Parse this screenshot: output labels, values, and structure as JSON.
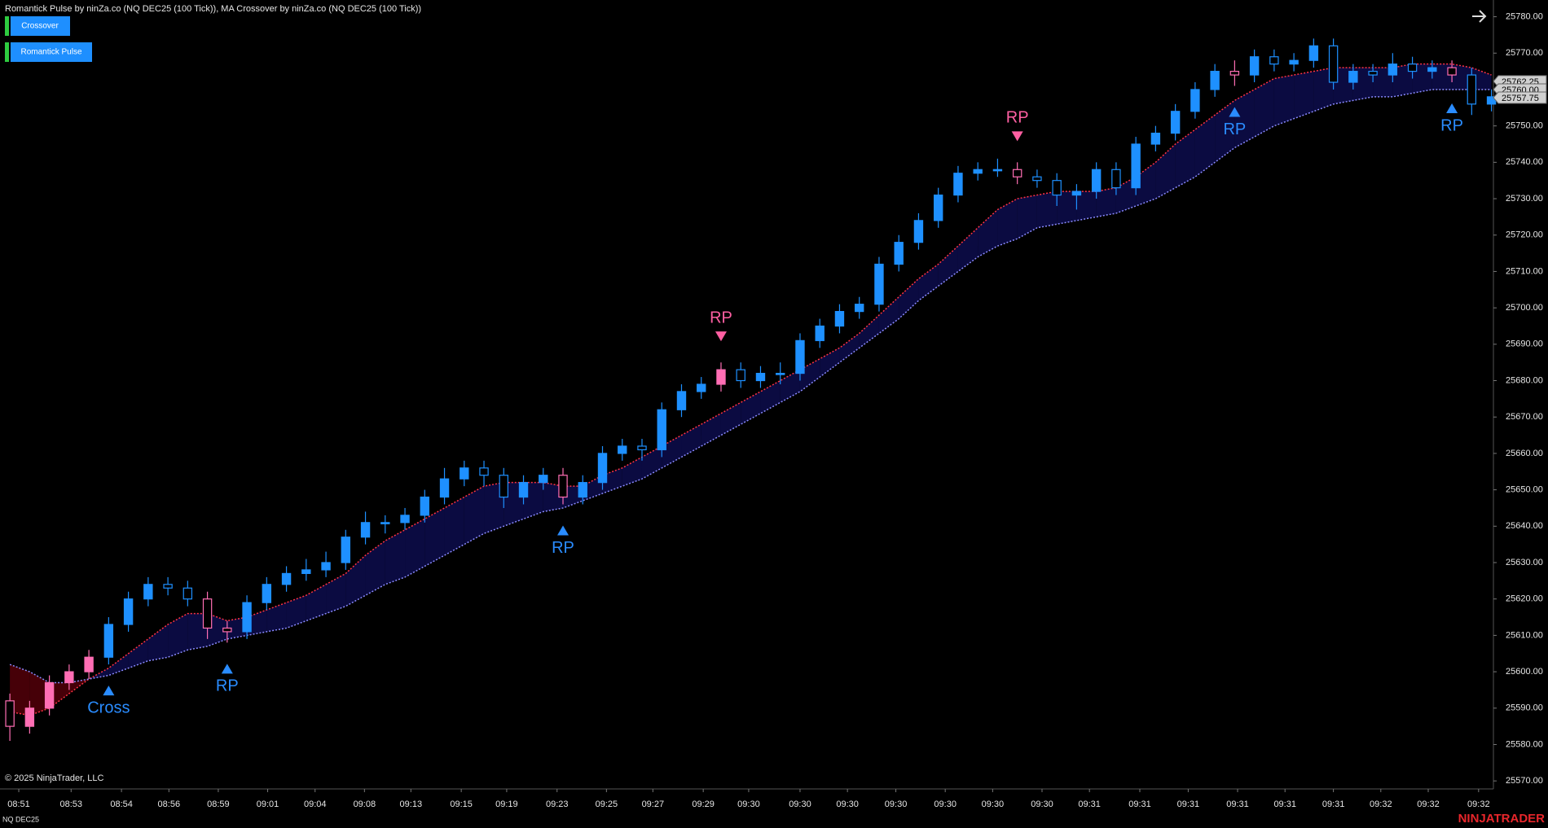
{
  "chart_data": {
    "type": "candlestick",
    "title": "Romantick Pulse by ninZa.co (NQ DEC25 (100 Tick)), MA Crossover by ninZa.co (NQ DEC25 (100 Tick))",
    "buttons": [
      "Crossover",
      "Romantick Pulse"
    ],
    "copyright": "© 2025 NinjaTrader, LLC",
    "instrument": "NQ DEC25",
    "brand": "NINJATRADER",
    "bull_color": "#1e90ff",
    "highlight_color": "#ff6eb4",
    "highlighted": [
      0,
      1,
      2,
      3,
      4,
      10,
      11,
      28,
      36,
      51,
      62,
      73
    ],
    "x": [
      0,
      1,
      2,
      3,
      4,
      5,
      6,
      7,
      8,
      9,
      10,
      11,
      12,
      13,
      14,
      15,
      16,
      17,
      18,
      19,
      20,
      21,
      22,
      23,
      24,
      25,
      26,
      27,
      28,
      29,
      30,
      31,
      32,
      33,
      34,
      35,
      36,
      37,
      38,
      39,
      40,
      41,
      42,
      43,
      44,
      45,
      46,
      47,
      48,
      49,
      50,
      51,
      52,
      53,
      54,
      55,
      56,
      57,
      58,
      59,
      60,
      61,
      62,
      63,
      64,
      65,
      66,
      67,
      68,
      69,
      70,
      71,
      72,
      73,
      74,
      75
    ],
    "open": [
      25592,
      25585,
      25590,
      25597,
      25600,
      25604,
      25613,
      25620,
      25624,
      25623,
      25620,
      25612,
      25611,
      25619,
      25624,
      25627,
      25628,
      25630,
      25637,
      25641,
      25641,
      25643,
      25648,
      25653,
      25656,
      25654,
      25648,
      25652,
      25654,
      25648,
      25652,
      25660,
      25662,
      25661,
      25672,
      25677,
      25679,
      25683,
      25680,
      25682,
      25682,
      25691,
      25695,
      25699,
      25701,
      25712,
      25718,
      25724,
      25731,
      25737,
      25738,
      25738,
      25736,
      25735,
      25731,
      25732,
      25738,
      25733,
      25745,
      25748,
      25754,
      25760,
      25765,
      25764,
      25769,
      25767,
      25768,
      25772,
      25762,
      25765,
      25764,
      25767,
      25765,
      25766,
      25764,
      25756
    ],
    "high": [
      25594,
      25592,
      25599,
      25602,
      25606,
      25615,
      25622,
      25626,
      25626,
      25625,
      25622,
      25614,
      25621,
      25626,
      25629,
      25631,
      25633,
      25639,
      25644,
      25643,
      25645,
      25650,
      25656,
      25658,
      25658,
      25656,
      25654,
      25656,
      25656,
      25654,
      25662,
      25664,
      25664,
      25674,
      25679,
      25681,
      25685,
      25685,
      25684,
      25685,
      25693,
      25697,
      25701,
      25703,
      25714,
      25720,
      25726,
      25733,
      25739,
      25740,
      25741,
      25740,
      25738,
      25737,
      25734,
      25740,
      25740,
      25747,
      25750,
      25756,
      25762,
      25767,
      25768,
      25771,
      25771,
      25770,
      25774,
      25774,
      25767,
      25767,
      25770,
      25769,
      25768,
      25768,
      25766,
      25760
    ],
    "low": [
      25581,
      25583,
      25588,
      25595,
      25598,
      25602,
      25611,
      25618,
      25621,
      25618,
      25609,
      25608,
      25609,
      25617,
      25622,
      25625,
      25626,
      25628,
      25635,
      25638,
      25639,
      25641,
      25646,
      25651,
      25651,
      25645,
      25646,
      25650,
      25646,
      25646,
      25650,
      25658,
      25658,
      25659,
      25670,
      25675,
      25677,
      25678,
      25678,
      25679,
      25680,
      25689,
      25693,
      25697,
      25699,
      25710,
      25716,
      25722,
      25729,
      25735,
      25736,
      25734,
      25733,
      25728,
      25727,
      25730,
      25731,
      25731,
      25743,
      25746,
      25752,
      25758,
      25761,
      25762,
      25765,
      25765,
      25766,
      25760,
      25760,
      25762,
      25762,
      25763,
      25763,
      25762,
      25753,
      25754
    ],
    "close": [
      25585,
      25590,
      25597,
      25600,
      25604,
      25613,
      25620,
      25624,
      25623,
      25620,
      25612,
      25611,
      25619,
      25624,
      25627,
      25628,
      25630,
      25637,
      25641,
      25641,
      25643,
      25648,
      25653,
      25656,
      25654,
      25648,
      25652,
      25654,
      25648,
      25652,
      25660,
      25662,
      25661,
      25672,
      25677,
      25679,
      25683,
      25680,
      25682,
      25682,
      25691,
      25695,
      25699,
      25701,
      25712,
      25718,
      25724,
      25731,
      25737,
      25738,
      25738,
      25736,
      25735,
      25731,
      25732,
      25738,
      25733,
      25745,
      25748,
      25754,
      25760,
      25765,
      25764,
      25769,
      25767,
      25768,
      25772,
      25762,
      25765,
      25764,
      25767,
      25765,
      25766,
      25764,
      25756,
      25758
    ],
    "ma_fast": {
      "color": "#ff3344",
      "values": [
        25589,
        25588,
        25590,
        25594,
        25598,
        25601,
        25605,
        25609,
        25613,
        25616,
        25616,
        25614,
        25615,
        25617,
        25619,
        25621,
        25624,
        25627,
        25632,
        25636,
        25639,
        25642,
        25645,
        25648,
        25651,
        25652,
        25652,
        25652,
        25651,
        25651,
        25654,
        25656,
        25659,
        25662,
        25665,
        25668,
        25671,
        25674,
        25677,
        25680,
        25683,
        25686,
        25689,
        25693,
        25698,
        25703,
        25708,
        25712,
        25717,
        25722,
        25727,
        25730,
        25731,
        25732,
        25732,
        25732,
        25733,
        25736,
        25740,
        25745,
        25749,
        25753,
        25757,
        25760,
        25763,
        25764,
        25765,
        25766,
        25766,
        25766,
        25766,
        25767,
        25767,
        25767,
        25766,
        25764
      ]
    },
    "ma_slow": {
      "color": "#8a8aff",
      "values": [
        25602,
        25600,
        25597,
        25597,
        25598,
        25599,
        25601,
        25603,
        25604,
        25606,
        25607,
        25609,
        25610,
        25611,
        25612,
        25614,
        25616,
        25618,
        25621,
        25624,
        25626,
        25629,
        25632,
        25635,
        25638,
        25640,
        25642,
        25644,
        25645,
        25647,
        25649,
        25651,
        25653,
        25656,
        25659,
        25662,
        25665,
        25668,
        25671,
        25674,
        25677,
        25681,
        25685,
        25689,
        25693,
        25697,
        25702,
        25706,
        25710,
        25714,
        25717,
        25719,
        25722,
        25723,
        25724,
        25725,
        25726,
        25728,
        25730,
        25733,
        25736,
        25740,
        25744,
        25747,
        25750,
        25752,
        25754,
        25756,
        25757,
        25758,
        25758,
        25759,
        25760,
        25760,
        25760,
        25760
      ]
    },
    "band_up_color": "#0c0c45",
    "band_down_color": "#4a0008",
    "signals": [
      {
        "label": "Cross",
        "index": 5,
        "dir": "up"
      },
      {
        "label": "RP",
        "index": 11,
        "dir": "up"
      },
      {
        "label": "RP",
        "index": 28,
        "dir": "up"
      },
      {
        "label": "RP",
        "index": 36,
        "dir": "down"
      },
      {
        "label": "RP",
        "index": 51,
        "dir": "down"
      },
      {
        "label": "RP",
        "index": 62,
        "dir": "up"
      },
      {
        "label": "RP",
        "index": 73,
        "dir": "up"
      }
    ],
    "signal_up_color": "#2a8cff",
    "signal_down_color": "#ff5fa2",
    "price_badges": [
      {
        "value": 25762.25,
        "label": "25762.25"
      },
      {
        "value": 25760,
        "label": "25760.00"
      },
      {
        "value": 25757.75,
        "label": "25757.75"
      }
    ],
    "xlim": [
      -0.5,
      75.1
    ],
    "ylim": [
      25567.8,
      25784.6
    ],
    "yticks": [
      {
        "value": 25570,
        "label": "25570.00"
      },
      {
        "value": 25580,
        "label": "25580.00"
      },
      {
        "value": 25590,
        "label": "25590.00"
      },
      {
        "value": 25600,
        "label": "25600.00"
      },
      {
        "value": 25610,
        "label": "25610.00"
      },
      {
        "value": 25620,
        "label": "25620.00"
      },
      {
        "value": 25630,
        "label": "25630.00"
      },
      {
        "value": 25640,
        "label": "25640.00"
      },
      {
        "value": 25650,
        "label": "25650.00"
      },
      {
        "value": 25660,
        "label": "25660.00"
      },
      {
        "value": 25670,
        "label": "25670.00"
      },
      {
        "value": 25680,
        "label": "25680.00"
      },
      {
        "value": 25690,
        "label": "25690.00"
      },
      {
        "value": 25700,
        "label": "25700.00"
      },
      {
        "value": 25710,
        "label": "25710.00"
      },
      {
        "value": 25720,
        "label": "25720.00"
      },
      {
        "value": 25730,
        "label": "25730.00"
      },
      {
        "value": 25740,
        "label": "25740.00"
      },
      {
        "value": 25750,
        "label": "25750.00"
      },
      {
        "value": 25760,
        "label": "25760.00"
      },
      {
        "value": 25770,
        "label": "25770.00"
      },
      {
        "value": 25780,
        "label": "25780.00"
      }
    ],
    "xticks": [
      {
        "value": 0.45,
        "label": "08:51"
      },
      {
        "value": 3.1,
        "label": "08:53"
      },
      {
        "value": 5.65,
        "label": "08:54"
      },
      {
        "value": 8.05,
        "label": "08:56"
      },
      {
        "value": 10.55,
        "label": "08:59"
      },
      {
        "value": 13.05,
        "label": "09:01"
      },
      {
        "value": 15.45,
        "label": "09:04"
      },
      {
        "value": 17.95,
        "label": "09:08"
      },
      {
        "value": 20.3,
        "label": "09:13"
      },
      {
        "value": 22.85,
        "label": "09:15"
      },
      {
        "value": 25.15,
        "label": "09:19"
      },
      {
        "value": 27.7,
        "label": "09:23"
      },
      {
        "value": 30.2,
        "label": "09:25"
      },
      {
        "value": 32.55,
        "label": "09:27"
      },
      {
        "value": 35.1,
        "label": "09:29"
      },
      {
        "value": 37.4,
        "label": "09:30"
      },
      {
        "value": 40,
        "label": "09:30"
      },
      {
        "value": 42.4,
        "label": "09:30"
      },
      {
        "value": 44.85,
        "label": "09:30"
      },
      {
        "value": 47.35,
        "label": "09:30"
      },
      {
        "value": 49.75,
        "label": "09:30"
      },
      {
        "value": 52.25,
        "label": "09:30"
      },
      {
        "value": 54.65,
        "label": "09:31"
      },
      {
        "value": 57.2,
        "label": "09:31"
      },
      {
        "value": 59.65,
        "label": "09:31"
      },
      {
        "value": 62.15,
        "label": "09:31"
      },
      {
        "value": 64.55,
        "label": "09:31"
      },
      {
        "value": 67,
        "label": "09:31"
      },
      {
        "value": 69.4,
        "label": "09:32"
      },
      {
        "value": 71.8,
        "label": "09:32"
      },
      {
        "value": 74.35,
        "label": "09:32"
      }
    ]
  }
}
